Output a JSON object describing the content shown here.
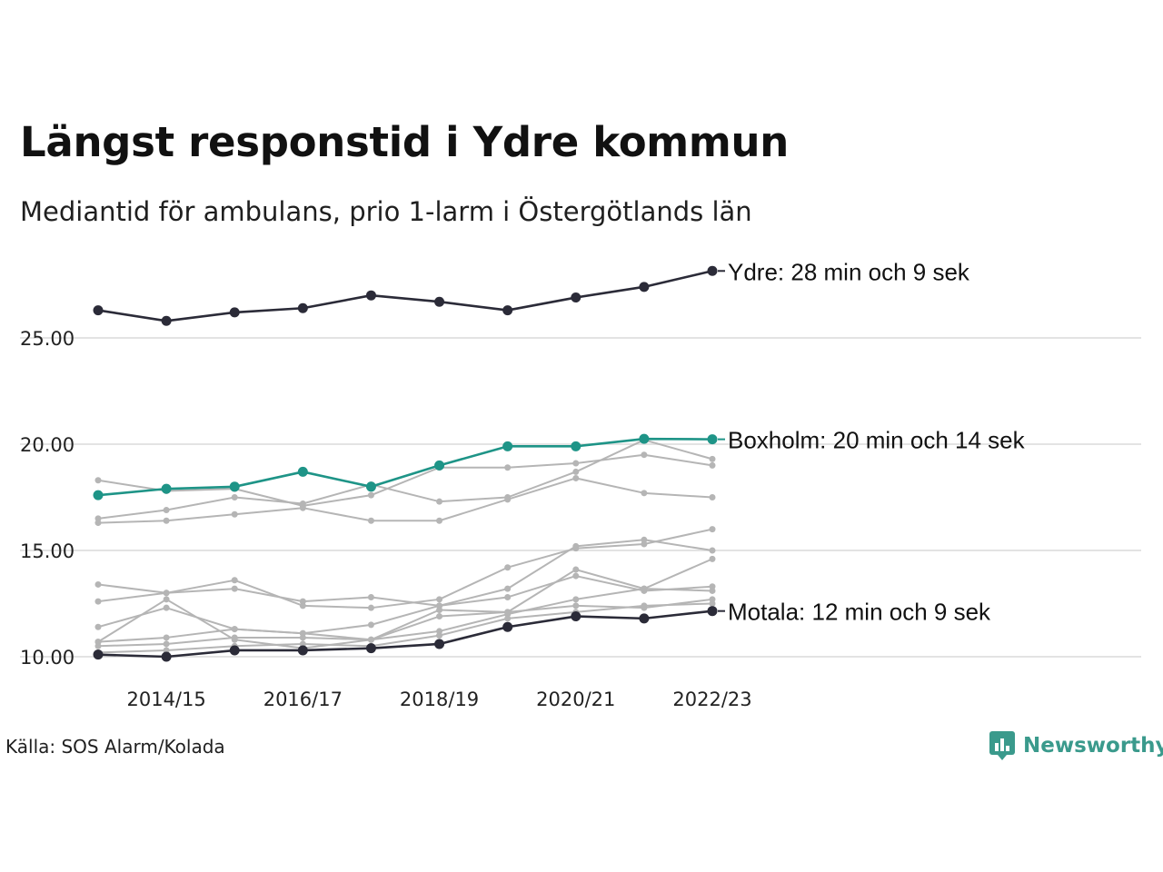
{
  "title": "Längst responstid i Ydre kommun",
  "subtitle": "Mediantid för ambulans, prio 1-larm i Östergötlands län",
  "source": "Källa: SOS Alarm/Kolada",
  "brand": {
    "name": "Newsworthy",
    "icon": "newsworthy-logo-icon",
    "color": "#3a9a8c"
  },
  "colors": {
    "highlight_dark": "#2b2b38",
    "highlight_teal": "#1e9487",
    "others": "#b5b5b5",
    "grid": "#e3e3e3"
  },
  "chart_data": {
    "type": "line",
    "title": "Längst responstid i Ydre kommun",
    "subtitle": "Mediantid för ambulans, prio 1-larm i Östergötlands län",
    "xlabel": "",
    "ylabel": "",
    "x": [
      "2013/14",
      "2014/15",
      "2015/16",
      "2016/17",
      "2017/18",
      "2018/19",
      "2019/20",
      "2020/21",
      "2021/22",
      "2022/23"
    ],
    "x_tick_labels": [
      "2014/15",
      "2016/17",
      "2018/19",
      "2020/21",
      "2022/23"
    ],
    "y_ticks": [
      "10.00",
      "15.00",
      "20.00",
      "25.00"
    ],
    "ylim": [
      9.9,
      28.6
    ],
    "grid": "horizontal",
    "series": [
      {
        "name": "Ydre",
        "label": "Ydre: 28 min och 9 sek",
        "role": "dark",
        "values": [
          26.3,
          25.8,
          26.2,
          26.4,
          27.0,
          26.7,
          26.3,
          26.9,
          27.4,
          28.15
        ]
      },
      {
        "name": "Boxholm",
        "label": "Boxholm: 20 min och 14 sek",
        "role": "teal",
        "values": [
          17.6,
          17.9,
          18.0,
          18.7,
          18.0,
          19.0,
          19.9,
          19.9,
          20.25,
          20.23
        ]
      },
      {
        "name": "Motala",
        "label": "Motala: 12 min och 9 sek",
        "role": "dark",
        "values": [
          10.1,
          10.0,
          10.3,
          10.3,
          10.4,
          10.6,
          11.4,
          11.9,
          11.8,
          12.15
        ]
      },
      {
        "values": [
          18.3,
          17.8,
          17.9,
          17.1,
          17.6,
          18.9,
          18.9,
          19.1,
          19.5,
          19.0
        ]
      },
      {
        "values": [
          16.5,
          16.9,
          17.5,
          17.2,
          18.1,
          17.3,
          17.5,
          18.7,
          20.2,
          19.3
        ]
      },
      {
        "values": [
          16.3,
          16.4,
          16.7,
          17.0,
          16.4,
          16.4,
          17.4,
          18.4,
          17.7,
          17.5
        ]
      },
      {
        "values": [
          12.6,
          13.0,
          13.6,
          12.4,
          12.3,
          12.7,
          14.2,
          15.1,
          15.3,
          16.0
        ]
      },
      {
        "values": [
          13.4,
          13.0,
          13.2,
          12.6,
          12.8,
          12.4,
          13.2,
          15.2,
          15.5,
          15.0
        ]
      },
      {
        "values": [
          11.4,
          12.3,
          11.3,
          11.1,
          11.5,
          12.4,
          12.8,
          13.8,
          13.1,
          13.3
        ]
      },
      {
        "values": [
          10.7,
          12.7,
          10.8,
          10.4,
          10.8,
          11.9,
          12.1,
          14.1,
          13.2,
          14.6
        ]
      },
      {
        "values": [
          10.7,
          10.9,
          11.3,
          11.1,
          10.8,
          11.2,
          12.0,
          12.7,
          13.2,
          13.1
        ]
      },
      {
        "values": [
          10.5,
          10.6,
          10.9,
          10.9,
          10.8,
          12.2,
          12.1,
          12.4,
          12.3,
          12.7
        ]
      },
      {
        "values": [
          10.2,
          10.3,
          10.5,
          10.6,
          10.5,
          11.0,
          11.8,
          12.1,
          12.4,
          12.5
        ]
      }
    ]
  }
}
